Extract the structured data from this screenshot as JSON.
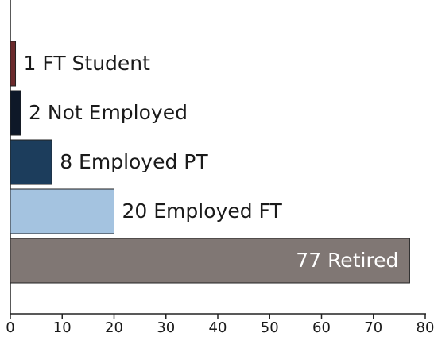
{
  "chart_data": {
    "type": "barh",
    "categories": [
      "FT Student",
      "Not Employed",
      "Employed PT",
      "Employed FT",
      "Retired"
    ],
    "values": [
      1,
      2,
      8,
      20,
      77
    ],
    "colors": [
      "#6b2a2c",
      "#0e1828",
      "#1c3d5c",
      "#a4c3e0",
      "#807774"
    ],
    "xlim": [
      0,
      80
    ],
    "xticks": [
      0,
      10,
      20,
      30,
      40,
      50,
      60,
      70,
      80
    ],
    "grid": false
  }
}
